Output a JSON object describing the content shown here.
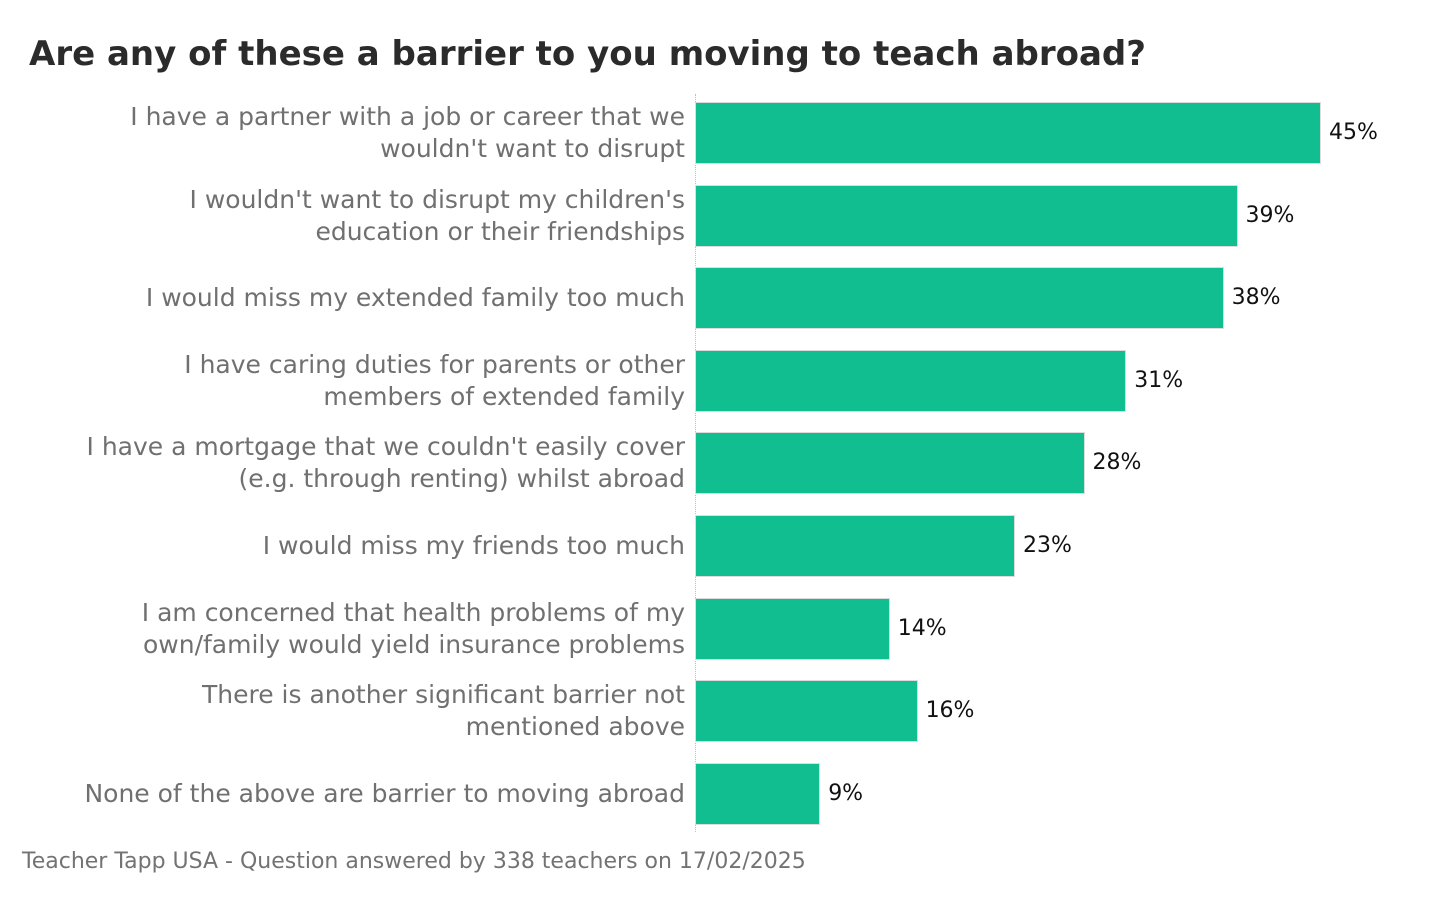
{
  "chart_data": {
    "type": "bar",
    "orientation": "horizontal",
    "title": "Are any of these a barrier to you moving to teach abroad?",
    "categories": [
      "I have a partner with a job or career that we\nwouldn't want to disrupt",
      "I wouldn't want to disrupt my children's\neducation or their friendships",
      "I would miss my extended family too much",
      "I have caring duties for parents or other\nmembers of extended family",
      "I have a mortgage that we couldn't easily cover\n(e.g. through renting) whilst abroad",
      "I would miss my friends too much",
      "I am concerned that health problems of my\nown/family would yield insurance problems",
      "There is another significant barrier not\nmentioned above",
      "None of the above are barrier to moving abroad"
    ],
    "values": [
      45,
      39,
      38,
      31,
      28,
      23,
      14,
      16,
      9
    ],
    "value_labels": [
      "45%",
      "39%",
      "38%",
      "31%",
      "28%",
      "23%",
      "14%",
      "16%",
      "9%"
    ],
    "xlim": [
      0,
      45
    ],
    "grid": false,
    "colors": {
      "bar": "#10be8f",
      "bar_edge": "#dcdcdc"
    }
  },
  "footer": "Teacher Tapp USA - Question answered by 338 teachers on 17/02/2025"
}
